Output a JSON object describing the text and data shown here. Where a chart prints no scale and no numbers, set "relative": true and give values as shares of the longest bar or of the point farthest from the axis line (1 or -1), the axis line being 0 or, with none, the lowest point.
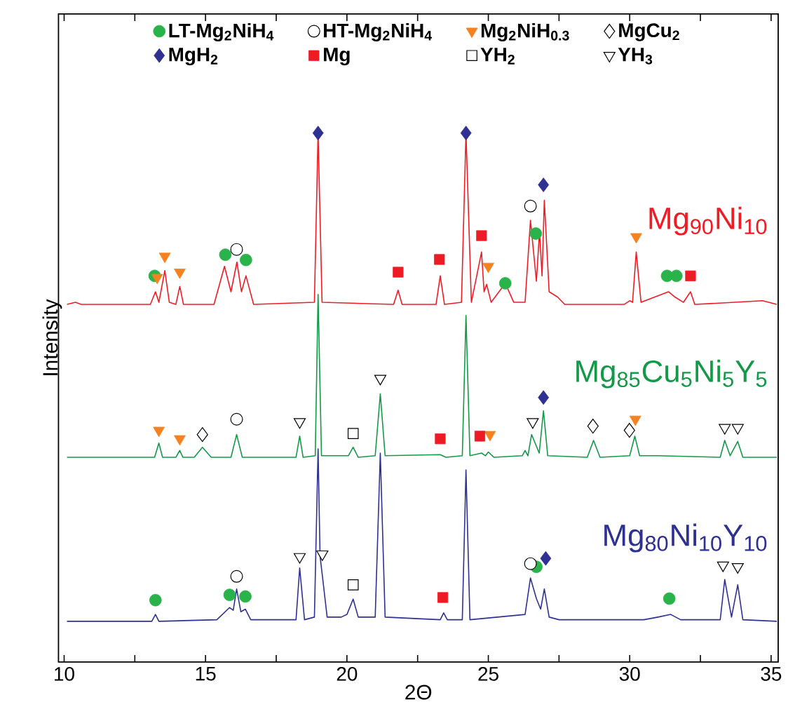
{
  "chart_data": {
    "type": "line",
    "xlabel": "2Θ",
    "ylabel": "Intensity",
    "relative": true,
    "xlim": [
      9.8,
      35.25
    ],
    "xticks": [
      10,
      {
        "value": 12.5,
        "label": null
      },
      15,
      {
        "value": 17.5,
        "label": null
      },
      20,
      {
        "value": 22.5,
        "label": null
      },
      25,
      {
        "value": 27.5,
        "label": null
      },
      30,
      {
        "value": 32.5,
        "label": null
      },
      35
    ],
    "tick_labels": "x",
    "legend": "top",
    "grid": false,
    "series": [
      {
        "name": "Mg$_{90}$Ni$_{10}$",
        "color": "#ee1c25",
        "x": [
          10.1,
          10.4,
          10.6,
          13.05,
          13.23,
          13.35,
          13.56,
          13.72,
          13.95,
          14.09,
          14.22,
          15.3,
          15.67,
          15.9,
          16.11,
          16.27,
          16.43,
          16.7,
          18.85,
          18.98,
          19.12,
          21.65,
          21.81,
          21.95,
          23.15,
          23.3,
          23.45,
          24.05,
          24.21,
          24.4,
          24.76,
          24.85,
          24.94,
          25.1,
          25.6,
          25.9,
          26.3,
          26.49,
          26.7,
          26.81,
          26.9,
          26.98,
          27.15,
          27.45,
          27.7,
          29.8,
          30.0,
          30.1,
          30.23,
          30.4,
          31.37,
          31.6,
          31.9,
          32.15,
          32.3,
          34.7,
          35.2
        ],
        "values": [
          0.676,
          0.68,
          0.676,
          0.676,
          0.7,
          0.68,
          0.74,
          0.68,
          0.676,
          0.71,
          0.676,
          0.676,
          0.748,
          0.7,
          0.756,
          0.7,
          0.73,
          0.676,
          0.68,
          1.0,
          0.68,
          0.676,
          0.703,
          0.676,
          0.676,
          0.73,
          0.676,
          0.68,
          1.0,
          0.68,
          0.775,
          0.7,
          0.714,
          0.68,
          0.716,
          0.68,
          0.68,
          0.835,
          0.72,
          0.814,
          0.73,
          0.873,
          0.7,
          0.69,
          0.676,
          0.676,
          0.683,
          0.68,
          0.775,
          0.68,
          0.7,
          0.69,
          0.68,
          0.7,
          0.676,
          0.683,
          0.676
        ]
      },
      {
        "name": "Mg$_{85}$Cu$_{5}$Ni$_{5}$Y$_{5}$",
        "color": "#129a48",
        "x": [
          10.1,
          13.2,
          13.35,
          13.48,
          13.95,
          14.09,
          14.2,
          14.6,
          14.89,
          15.2,
          15.9,
          16.1,
          16.3,
          18.2,
          18.33,
          18.45,
          18.88,
          18.98,
          19.1,
          20.05,
          20.22,
          20.4,
          21.0,
          21.18,
          21.35,
          23.3,
          23.5,
          24.08,
          24.21,
          24.35,
          24.76,
          24.9,
          25.0,
          25.2,
          26.2,
          26.3,
          26.4,
          26.53,
          26.8,
          26.95,
          27.1,
          28.5,
          28.72,
          28.95,
          30.0,
          30.18,
          30.35,
          31.0,
          33.2,
          33.36,
          33.55,
          33.82,
          34.0,
          35.2
        ],
        "values": [
          0.387,
          0.387,
          0.414,
          0.387,
          0.387,
          0.4,
          0.387,
          0.387,
          0.406,
          0.387,
          0.387,
          0.43,
          0.387,
          0.387,
          0.427,
          0.387,
          0.39,
          0.695,
          0.39,
          0.39,
          0.406,
          0.387,
          0.39,
          0.507,
          0.39,
          0.392,
          0.387,
          0.39,
          0.655,
          0.39,
          0.395,
          0.39,
          0.397,
          0.387,
          0.39,
          0.4,
          0.39,
          0.43,
          0.395,
          0.475,
          0.39,
          0.387,
          0.419,
          0.387,
          0.39,
          0.427,
          0.39,
          0.39,
          0.387,
          0.419,
          0.39,
          0.417,
          0.387,
          0.387
        ]
      },
      {
        "name": "Mg$_{80}$Ni$_{10}$Y$_{10}$",
        "color": "#2e3192",
        "x": [
          10.1,
          13.1,
          13.23,
          13.35,
          15.4,
          15.85,
          15.98,
          16.1,
          16.25,
          16.41,
          16.6,
          18.2,
          18.33,
          18.5,
          18.85,
          18.98,
          19.05,
          19.13,
          19.3,
          19.8,
          20.0,
          20.22,
          20.4,
          21.0,
          21.18,
          21.35,
          23.3,
          23.42,
          23.55,
          24.08,
          24.21,
          24.35,
          26.3,
          26.49,
          26.7,
          26.85,
          26.98,
          27.15,
          27.5,
          30.5,
          31.0,
          31.45,
          31.8,
          33.2,
          33.36,
          33.6,
          33.82,
          34.0,
          35.2
        ],
        "values": [
          0.077,
          0.077,
          0.09,
          0.077,
          0.08,
          0.103,
          0.098,
          0.138,
          0.095,
          0.1,
          0.08,
          0.08,
          0.178,
          0.08,
          0.085,
          0.403,
          0.2,
          0.164,
          0.085,
          0.085,
          0.09,
          0.119,
          0.085,
          0.085,
          0.395,
          0.085,
          0.08,
          0.093,
          0.08,
          0.08,
          0.363,
          0.08,
          0.09,
          0.159,
          0.12,
          0.1,
          0.138,
          0.085,
          0.08,
          0.08,
          0.085,
          0.09,
          0.08,
          0.08,
          0.156,
          0.085,
          0.146,
          0.08,
          0.077
        ]
      },
      {
        "name": "LT-Mg$_{2}$NiH$_{4}$",
        "type": "scatter",
        "marker": "circle",
        "color": "#2bb34b",
        "x": [
          13.2,
          15.7,
          16.43,
          25.6,
          26.68,
          31.32,
          31.65,
          13.23,
          15.85,
          16.41,
          26.7,
          31.4
        ],
        "values": [
          0.73,
          0.77,
          0.76,
          0.716,
          0.81,
          0.73,
          0.73,
          0.117,
          0.127,
          0.124,
          0.18,
          0.12
        ]
      },
      {
        "name": "HT-Mg$_{2}$NiH$_{4}$",
        "type": "scatter",
        "marker": "circle",
        "color": "#000000",
        "x": [
          16.1,
          26.49,
          16.1,
          16.1,
          26.49
        ],
        "values": [
          0.78,
          0.862,
          0.459,
          0.162,
          0.186
        ]
      },
      {
        "name": "Mg$_{2}$NiH$_{0.3}$",
        "type": "scatter",
        "marker": "triangle",
        "color": "#f58220",
        "x": [
          13.29,
          13.56,
          14.09,
          25.0,
          30.23,
          13.35,
          14.09,
          25.06,
          30.2
        ],
        "values": [
          0.727,
          0.767,
          0.737,
          0.748,
          0.804,
          0.438,
          0.422,
          0.43,
          0.459
        ]
      },
      {
        "name": "MgCu$_{2}$",
        "type": "scatter",
        "marker": "diamond",
        "color": "#000000",
        "x": [
          14.89,
          28.7,
          29.99
        ],
        "values": [
          0.43,
          0.446,
          0.438
        ]
      },
      {
        "name": "MgH$_{2}$",
        "type": "scatter",
        "marker": "diamond",
        "color": "#2e3192",
        "x": [
          18.98,
          24.21,
          26.95,
          26.95,
          27.03
        ],
        "values": [
          1.0,
          1.0,
          0.902,
          0.5,
          0.196
        ]
      },
      {
        "name": "Mg",
        "type": "scatter",
        "marker": "square",
        "color": "#ed1c24",
        "x": [
          21.81,
          23.27,
          24.76,
          32.15,
          23.3,
          24.7,
          23.39
        ],
        "values": [
          0.737,
          0.761,
          0.806,
          0.73,
          0.422,
          0.427,
          0.122
        ]
      },
      {
        "name": "YH$_{2}$",
        "type": "scatter",
        "marker": "square",
        "color": "#000000",
        "x": [
          20.22,
          20.22
        ],
        "values": [
          0.432,
          0.146
        ]
      },
      {
        "name": "YH$_{3}$",
        "type": "scatter",
        "marker": "triangle",
        "color": "#000000",
        "x": [
          18.33,
          21.18,
          26.57,
          33.36,
          33.82,
          18.33,
          19.13,
          33.3,
          33.82
        ],
        "values": [
          0.454,
          0.536,
          0.454,
          0.443,
          0.443,
          0.199,
          0.204,
          0.183,
          0.18
        ]
      }
    ]
  }
}
